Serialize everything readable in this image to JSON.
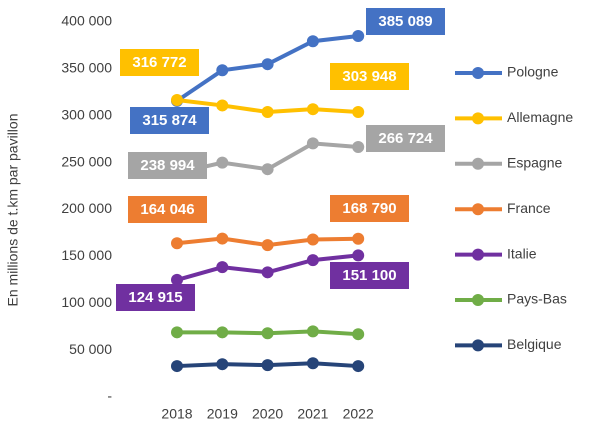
{
  "chart_data": {
    "type": "line",
    "y_label": "En millions de t.km par pavillon",
    "categories": [
      "2018",
      "2019",
      "2020",
      "2021",
      "2022"
    ],
    "ylim": [
      0,
      400000
    ],
    "yticks": [
      {
        "value": 0,
        "label": "-"
      },
      {
        "value": 50000,
        "label": "50 000"
      },
      {
        "value": 100000,
        "label": "100 000"
      },
      {
        "value": 150000,
        "label": "150 000"
      },
      {
        "value": 200000,
        "label": "200 000"
      },
      {
        "value": 250000,
        "label": "250 000"
      },
      {
        "value": 300000,
        "label": "300 000"
      },
      {
        "value": 350000,
        "label": "350 000"
      },
      {
        "value": 400000,
        "label": "400 000"
      }
    ],
    "grid": false,
    "legend": "right",
    "series": [
      {
        "name": "Pologne",
        "color": "#4472c4",
        "values": [
          315874,
          348500,
          355000,
          379500,
          385089
        ],
        "value_labels": [
          "315 874",
          null,
          null,
          null,
          "385 089"
        ]
      },
      {
        "name": "Allemagne",
        "color": "#ffc000",
        "values": [
          316772,
          311000,
          304000,
          307000,
          303948
        ],
        "value_labels": [
          "316 772",
          null,
          null,
          null,
          "303 948"
        ]
      },
      {
        "name": "Espagne",
        "color": "#a5a5a5",
        "values": [
          238994,
          250000,
          243000,
          270500,
          266724
        ],
        "value_labels": [
          "238 994",
          null,
          null,
          null,
          "266 724"
        ]
      },
      {
        "name": "France",
        "color": "#ed7d31",
        "values": [
          164046,
          169000,
          162000,
          168000,
          168790
        ],
        "value_labels": [
          "164 046",
          null,
          null,
          null,
          "168 790"
        ]
      },
      {
        "name": "Italie",
        "color": "#7030a0",
        "values": [
          124915,
          138500,
          133000,
          146000,
          151100
        ],
        "value_labels": [
          "124 915",
          null,
          null,
          null,
          "151 100"
        ]
      },
      {
        "name": "Pays-Bas",
        "color": "#70ad47",
        "values": [
          69000,
          69000,
          68000,
          70000,
          67000
        ],
        "value_labels": [
          null,
          null,
          null,
          null,
          null
        ]
      },
      {
        "name": "Belgique",
        "color": "#264478",
        "values": [
          33000,
          35000,
          34000,
          36000,
          33000
        ],
        "value_labels": [
          null,
          null,
          null,
          null,
          null
        ]
      }
    ]
  }
}
